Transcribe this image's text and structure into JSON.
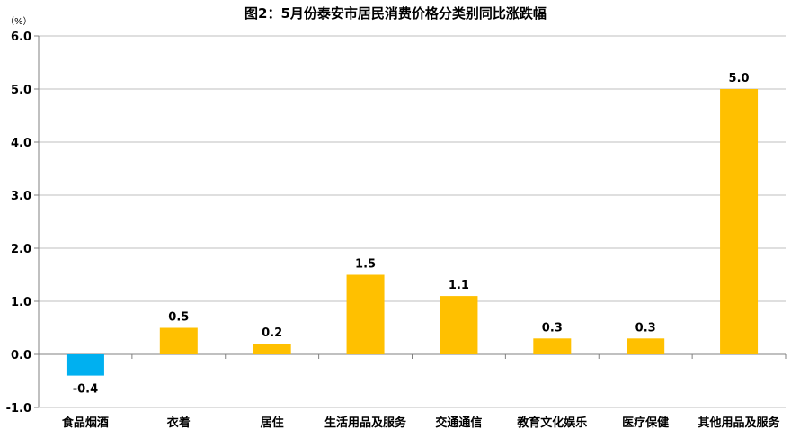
{
  "chart_data": {
    "type": "bar",
    "title": "图2：5月份泰安市居民消费价格分类别同比涨跌幅",
    "unit": "（%）",
    "xlabel": "",
    "ylabel": "",
    "categories": [
      "食品烟酒",
      "衣着",
      "居住",
      "生活用品及服务",
      "交通通信",
      "教育文化娱乐",
      "医疗保健",
      "其他用品及服务"
    ],
    "values": [
      -0.4,
      0.5,
      0.2,
      1.5,
      1.1,
      0.3,
      0.3,
      5.0
    ],
    "value_labels": [
      "-0.4",
      "0.5",
      "0.2",
      "1.5",
      "1.1",
      "0.3",
      "0.3",
      "5.0"
    ],
    "ylim": [
      -1.0,
      6.0
    ],
    "yticks": [
      -1.0,
      0.0,
      1.0,
      2.0,
      3.0,
      4.0,
      5.0,
      6.0
    ],
    "ytick_labels": [
      "-1.0",
      "0.0",
      "1.0",
      "2.0",
      "3.0",
      "4.0",
      "5.0",
      "6.0"
    ],
    "grid": true,
    "legend": "none",
    "colors": {
      "positive": "#FFC000",
      "negative": "#00B0F0",
      "grid": "#BFBFBF",
      "axis": "#808080"
    }
  }
}
